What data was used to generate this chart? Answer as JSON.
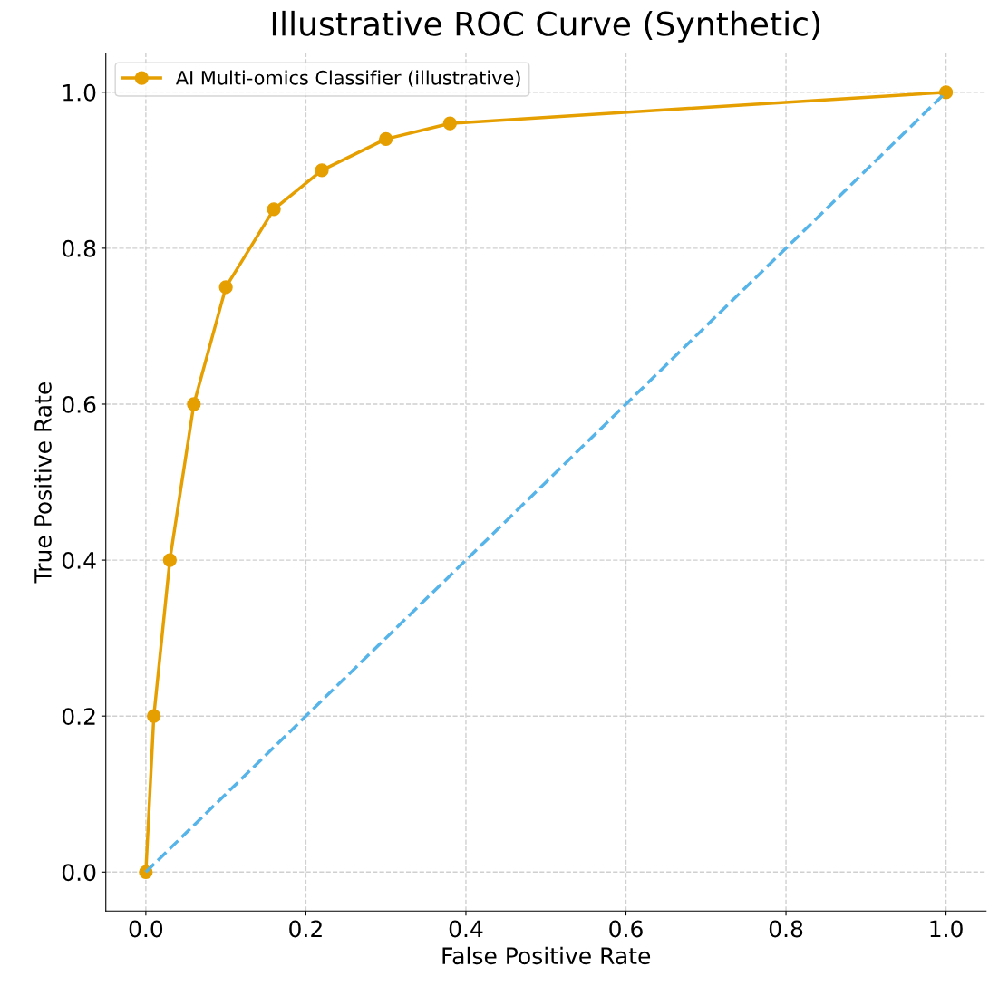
{
  "chart_data": {
    "type": "line",
    "title": "Illustrative ROC Curve (Synthetic)",
    "xlabel": "False Positive Rate",
    "ylabel": "True Positive Rate",
    "series": [
      {
        "name": "AI Multi-omics Classifier (illustrative)",
        "color": "#e69f00",
        "marker": "circle",
        "line_style": "solid",
        "x": [
          0,
          0.01,
          0.03,
          0.06,
          0.1,
          0.16,
          0.22,
          0.3,
          0.38,
          1.0
        ],
        "values": [
          0,
          0.2,
          0.4,
          0.6,
          0.75,
          0.85,
          0.9,
          0.94,
          0.96,
          1.0
        ]
      },
      {
        "color": "#56b4e9",
        "marker": "none",
        "line_style": "dashed",
        "x": [
          0,
          1
        ],
        "values": [
          0,
          1
        ]
      }
    ],
    "xlim": [
      -0.05,
      1.05
    ],
    "ylim": [
      -0.05,
      1.05
    ],
    "xticks": [
      {
        "value": 0,
        "label": "0.0"
      },
      0.2,
      0.4,
      0.6,
      0.8,
      {
        "value": 1,
        "label": "1.0"
      }
    ],
    "yticks": [
      {
        "value": 0,
        "label": "0.0"
      },
      0.2,
      0.4,
      0.6,
      0.8,
      {
        "value": 1,
        "label": "1.0"
      }
    ],
    "grid": true,
    "legend": "top left"
  }
}
